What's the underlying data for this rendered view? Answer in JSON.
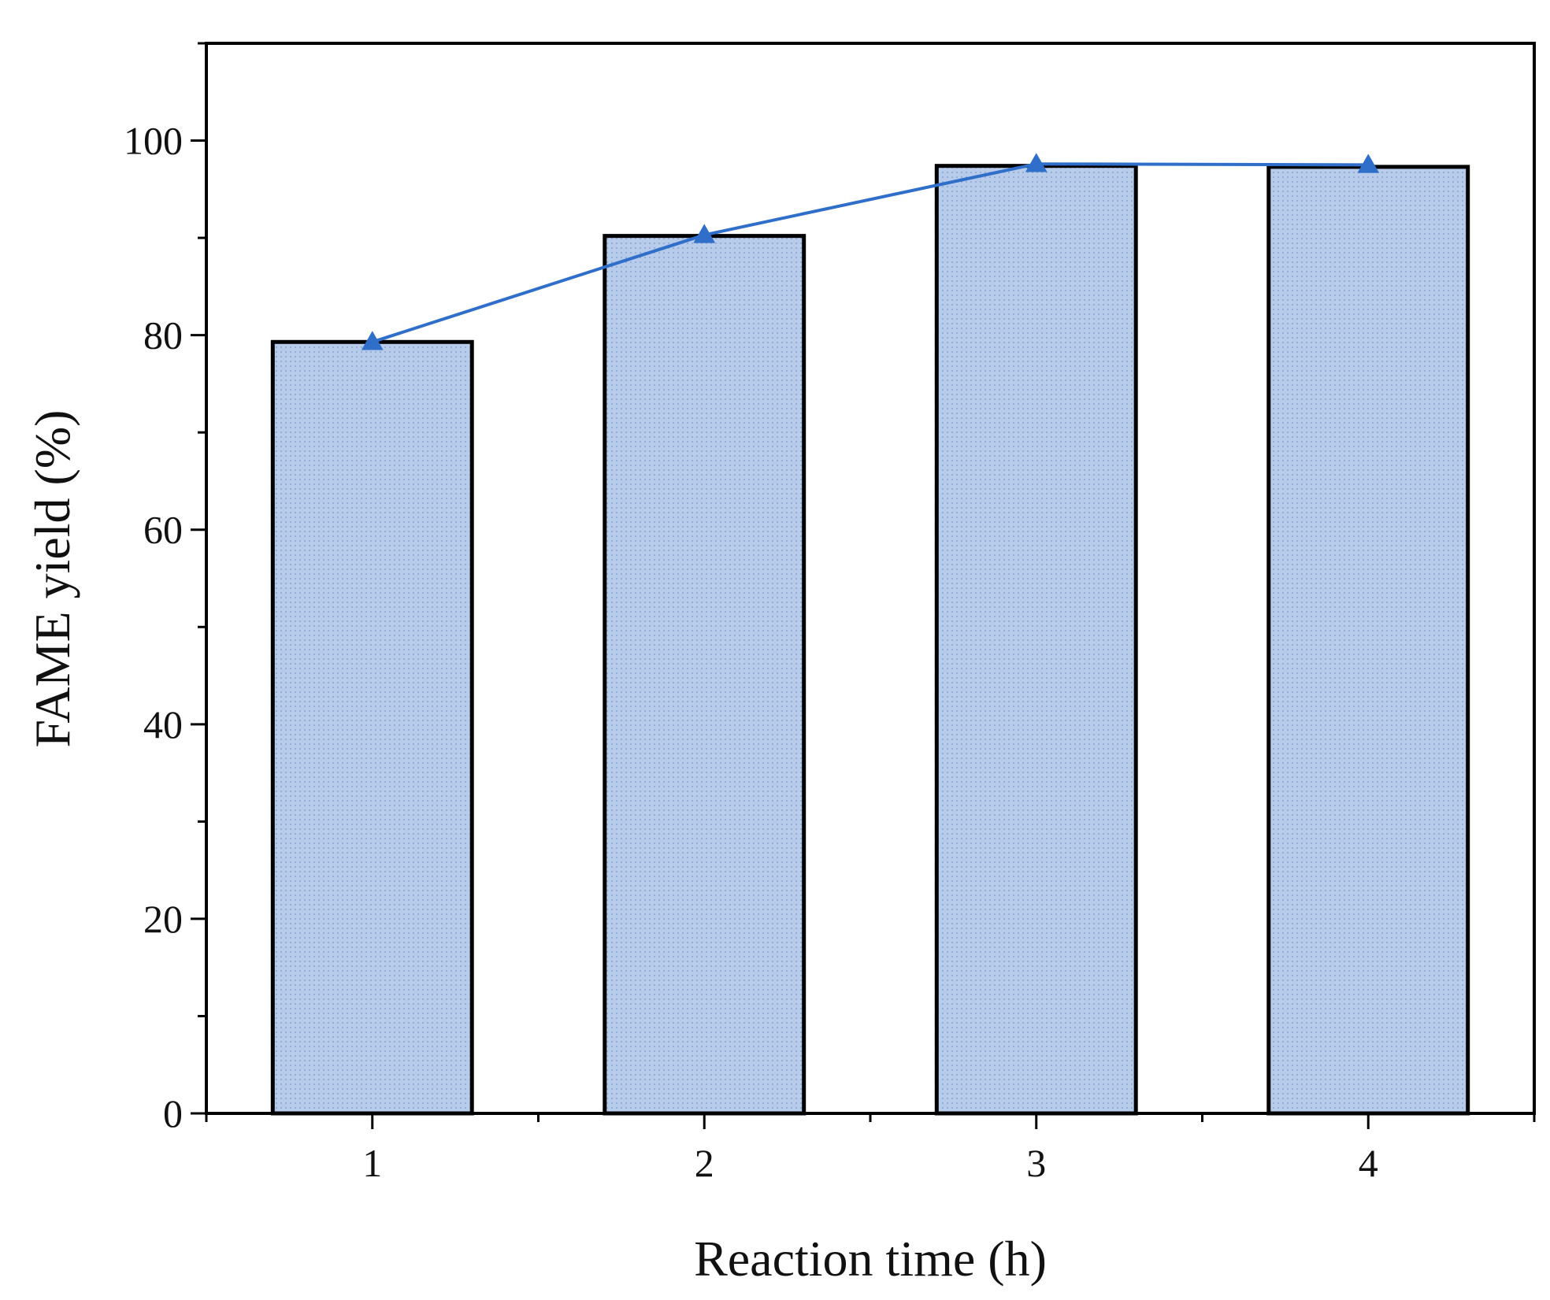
{
  "chart_data": {
    "type": "bar",
    "xlabel": "Reaction time (h)",
    "ylabel": "FAME yield (%)",
    "categories": [
      "1",
      "2",
      "3",
      "4"
    ],
    "values": [
      79.3,
      90.2,
      97.4,
      97.3
    ],
    "line_values": [
      79.3,
      90.3,
      97.6,
      97.5
    ],
    "ylim": [
      0,
      110
    ],
    "xlim": [
      0.5,
      4.5
    ],
    "y_ticks": [
      0,
      20,
      40,
      60,
      80,
      100
    ],
    "y_tick_labels": [
      "0",
      "20",
      "40",
      "60",
      "80",
      "100"
    ],
    "y_minor_tick_step": 10,
    "x_tick_labels": [
      "1",
      "2",
      "3",
      "4"
    ],
    "grid": false,
    "bar_fill": "#b7cbea",
    "bar_pattern_dot": "#7f99c4",
    "bar_edge": "#000000",
    "line_color": "#2f6fca",
    "line_marker": "triangle"
  }
}
